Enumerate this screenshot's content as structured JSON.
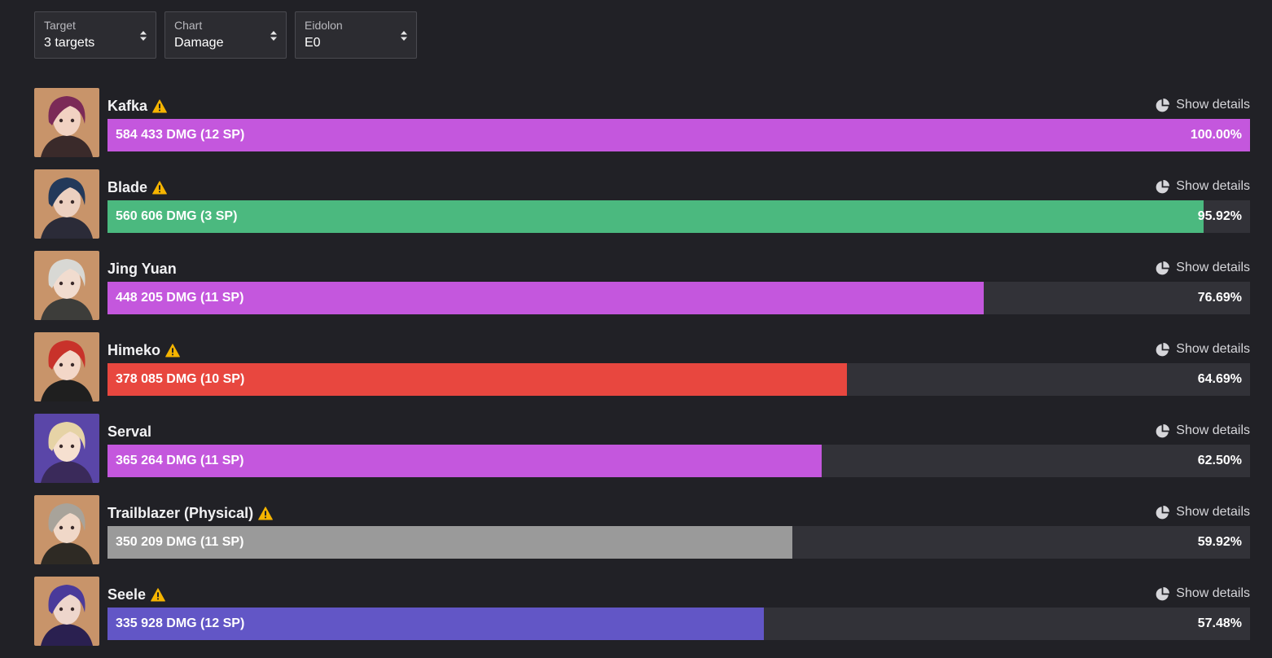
{
  "filters": [
    {
      "label": "Target",
      "value": "3 targets"
    },
    {
      "label": "Chart",
      "value": "Damage"
    },
    {
      "label": "Eidolon",
      "value": "E0"
    }
  ],
  "details_label": "Show details",
  "colors": {
    "background": "#212126",
    "track": "#323238",
    "warning": "#f5b400",
    "lightning": "#c457dd",
    "wind": "#4bb97f",
    "fire": "#e8473f",
    "physical": "#9a9a9a",
    "quantum": "#6256c6"
  },
  "chart_data": {
    "type": "bar",
    "orientation": "horizontal",
    "categories": [
      "Kafka",
      "Blade",
      "Jing Yuan",
      "Himeko",
      "Serval",
      "Trailblazer (Physical)",
      "Seele"
    ],
    "values": [
      584433,
      560606,
      448205,
      378085,
      365264,
      350209,
      335928
    ],
    "sp": [
      12,
      3,
      11,
      10,
      11,
      11,
      12
    ],
    "xlim": [
      0,
      584433
    ],
    "bars": [
      {
        "name": "Kafka",
        "warning": true,
        "value": 584433,
        "label": "584 433 DMG (12 SP)",
        "percent_label": "100.00%",
        "color": "#c457dd"
      },
      {
        "name": "Blade",
        "warning": true,
        "value": 560606,
        "label": "560 606 DMG (3 SP)",
        "percent_label": "95.92%",
        "color": "#4bb97f"
      },
      {
        "name": "Jing Yuan",
        "warning": false,
        "value": 448205,
        "label": "448 205 DMG (11 SP)",
        "percent_label": "76.69%",
        "color": "#c457dd"
      },
      {
        "name": "Himeko",
        "warning": true,
        "value": 378085,
        "label": "378 085 DMG (10 SP)",
        "percent_label": "64.69%",
        "color": "#e8473f"
      },
      {
        "name": "Serval",
        "warning": false,
        "value": 365264,
        "label": "365 264 DMG (11 SP)",
        "percent_label": "62.50%",
        "color": "#c457dd"
      },
      {
        "name": "Trailblazer (Physical)",
        "warning": true,
        "value": 350209,
        "label": "350 209 DMG (11 SP)",
        "percent_label": "59.92%",
        "color": "#9a9a9a"
      },
      {
        "name": "Seele",
        "warning": true,
        "value": 335928,
        "label": "335 928 DMG (12 SP)",
        "percent_label": "57.48%",
        "color": "#6256c6"
      }
    ]
  }
}
